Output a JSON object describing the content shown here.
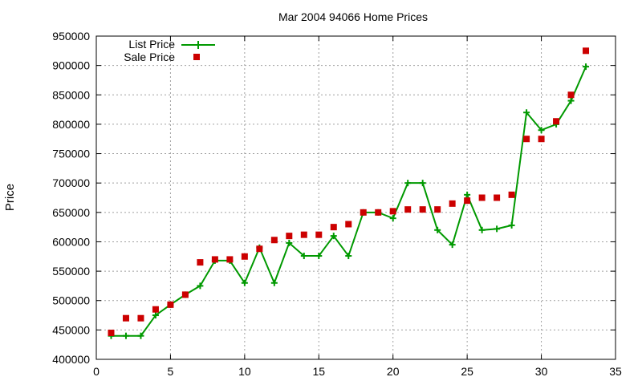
{
  "chart_data": {
    "type": "line",
    "title": "Mar 2004 94066 Home Prices",
    "xlabel": "",
    "ylabel": "Price",
    "xlim": [
      0,
      35
    ],
    "ylim": [
      400000,
      950000
    ],
    "xticks": [
      0,
      5,
      10,
      15,
      20,
      25,
      30,
      35
    ],
    "yticks": [
      400000,
      450000,
      500000,
      550000,
      600000,
      650000,
      700000,
      750000,
      800000,
      850000,
      900000,
      950000
    ],
    "grid": true,
    "legend_position": "top-left",
    "series": [
      {
        "name": "List Price",
        "style": "linespoints",
        "marker": "plus",
        "color": "#009900",
        "x": [
          1,
          2,
          3,
          4,
          5,
          6,
          7,
          8,
          9,
          10,
          11,
          12,
          13,
          14,
          15,
          16,
          17,
          18,
          19,
          20,
          21,
          22,
          23,
          24,
          25,
          26,
          27,
          28,
          29,
          30,
          31,
          32,
          33
        ],
        "y": [
          440000,
          440000,
          440000,
          475000,
          493000,
          510000,
          525000,
          568000,
          568000,
          530000,
          590000,
          530000,
          598000,
          576000,
          576000,
          610000,
          576000,
          650000,
          650000,
          640000,
          700000,
          700000,
          620000,
          595000,
          680000,
          620000,
          622000,
          628000,
          820000,
          790000,
          800000,
          840000,
          898000
        ]
      },
      {
        "name": "Sale Price",
        "style": "points",
        "marker": "square",
        "color": "#cc0000",
        "x": [
          1,
          2,
          3,
          4,
          5,
          6,
          7,
          8,
          9,
          10,
          11,
          12,
          13,
          14,
          15,
          16,
          17,
          18,
          19,
          20,
          21,
          22,
          23,
          24,
          25,
          26,
          27,
          28,
          29,
          30,
          31,
          32,
          33
        ],
        "y": [
          445000,
          470000,
          470000,
          485000,
          493000,
          510000,
          565000,
          570000,
          570000,
          575000,
          588000,
          603000,
          610000,
          612000,
          612000,
          625000,
          630000,
          650000,
          650000,
          652000,
          655000,
          655000,
          655000,
          665000,
          670000,
          675000,
          675000,
          680000,
          775000,
          775000,
          805000,
          850000,
          925000
        ]
      }
    ]
  }
}
